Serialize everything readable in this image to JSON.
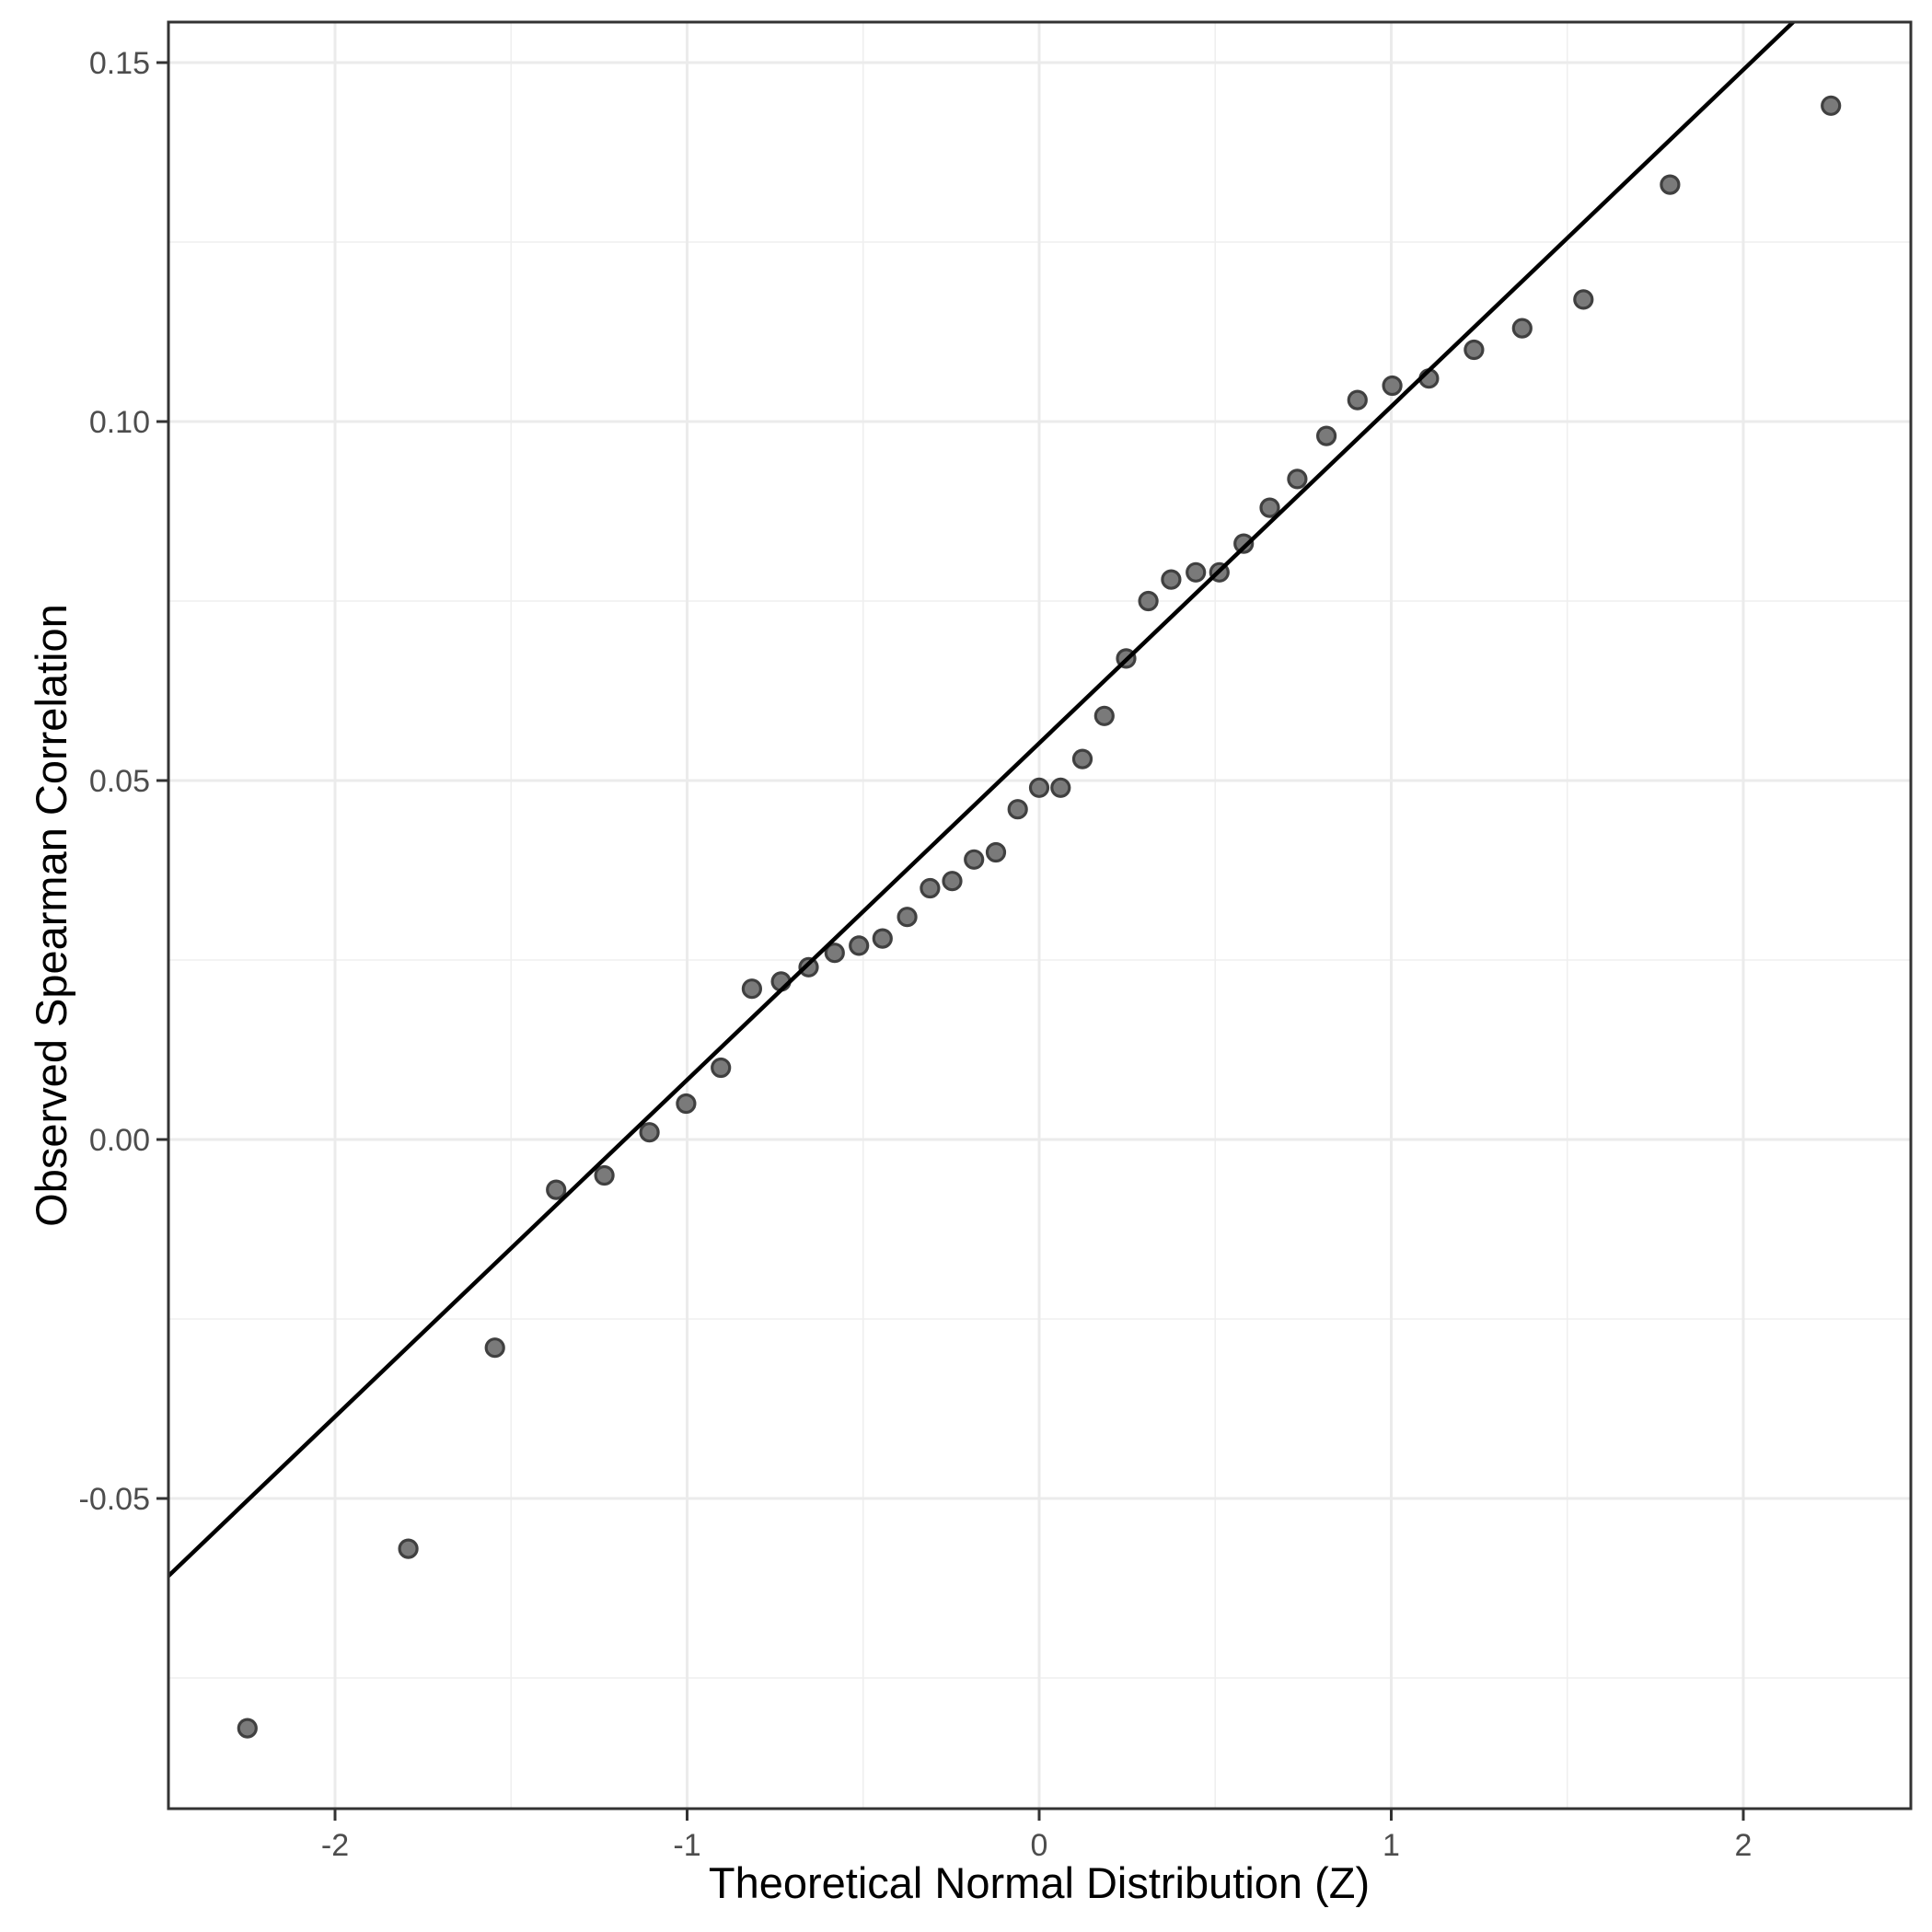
{
  "chart_data": {
    "type": "scatter",
    "subtype": "qq-plot",
    "title": "",
    "xlabel": "Theoretical Normal Distribution (Z)",
    "ylabel": "Observed Spearman Correlation",
    "xlim": [
      -2.473,
      2.476
    ],
    "ylim": [
      -0.0932,
      0.1557
    ],
    "grid": true,
    "legend_position": "none",
    "x_major_ticks": [
      -2,
      -1,
      0,
      1,
      2
    ],
    "x_tick_labels": [
      "-2",
      "-1",
      "0",
      "1",
      "2"
    ],
    "x_minor_ticks": [
      -1.5,
      -0.5,
      0.5,
      1.5
    ],
    "y_major_ticks": [
      0.15,
      0.1,
      0.05,
      0,
      -0.05
    ],
    "y_tick_labels": [
      "0.15",
      "0.10",
      "0.05",
      "0.00",
      "-0.05"
    ],
    "y_minor_ticks": [
      0.125,
      0.075,
      0.025,
      -0.025,
      -0.075
    ],
    "points": [
      [
        -2.249,
        -0.082
      ],
      [
        -1.792,
        -0.057
      ],
      [
        -1.546,
        -0.029
      ],
      [
        -1.372,
        -0.007
      ],
      [
        -1.235,
        -0.005
      ],
      [
        -1.107,
        0.001
      ],
      [
        -1.003,
        0.005
      ],
      [
        -0.904,
        0.01
      ],
      [
        -0.816,
        0.021
      ],
      [
        -0.733,
        0.022
      ],
      [
        -0.655,
        0.024
      ],
      [
        -0.581,
        0.026
      ],
      [
        -0.512,
        0.027
      ],
      [
        -0.445,
        0.028
      ],
      [
        -0.375,
        0.031
      ],
      [
        -0.31,
        0.035
      ],
      [
        -0.247,
        0.036
      ],
      [
        -0.185,
        0.039
      ],
      [
        -0.123,
        0.04
      ],
      [
        -0.061,
        0.046
      ],
      [
        0.0,
        0.049
      ],
      [
        0.061,
        0.049
      ],
      [
        0.123,
        0.053
      ],
      [
        0.185,
        0.059
      ],
      [
        0.247,
        0.067
      ],
      [
        0.31,
        0.075
      ],
      [
        0.375,
        0.078
      ],
      [
        0.445,
        0.079
      ],
      [
        0.512,
        0.079
      ],
      [
        0.581,
        0.083
      ],
      [
        0.655,
        0.088
      ],
      [
        0.733,
        0.092
      ],
      [
        0.816,
        0.098
      ],
      [
        0.904,
        0.103
      ],
      [
        1.003,
        0.105
      ],
      [
        1.107,
        0.106
      ],
      [
        1.235,
        0.11
      ],
      [
        1.372,
        0.113
      ],
      [
        1.546,
        0.117
      ],
      [
        1.792,
        0.133
      ],
      [
        2.249,
        0.144
      ]
    ],
    "qq_line": {
      "slope": 0.0469,
      "intercept": 0.0552
    },
    "colors": {
      "background": "#ffffff",
      "panel_background": "#ffffff",
      "panel_border": "#333333",
      "grid_major": "#ebebeb",
      "grid_minor": "#efefef",
      "point_fill": "#7a7a7a",
      "point_stroke": "#404040",
      "qq_line": "#000000",
      "tick_mark": "#333333",
      "tick_label": "#4d4d4d",
      "axis_title": "#000000"
    }
  }
}
